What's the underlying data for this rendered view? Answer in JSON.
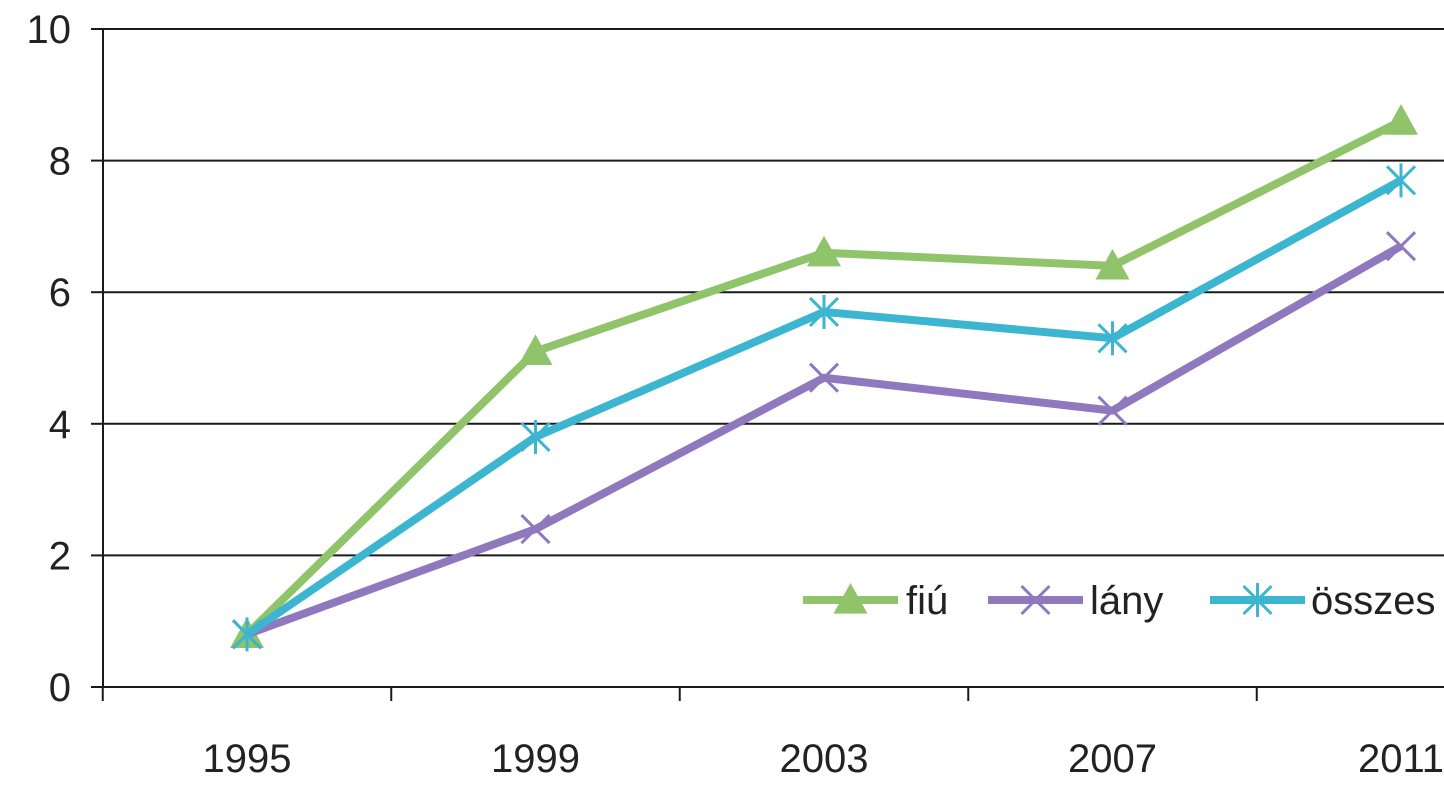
{
  "chart_data": {
    "type": "line",
    "categories": [
      "1995",
      "1999",
      "2003",
      "2007",
      "2011"
    ],
    "ylim": [
      0,
      10
    ],
    "yticks": [
      0,
      2,
      4,
      6,
      8,
      10
    ],
    "ytick_labels": [
      "0",
      "2",
      "4",
      "6",
      "8",
      "10"
    ],
    "grid": true,
    "legend_position": "bottom-right (inside plot)",
    "series": [
      {
        "name": "fiú",
        "color": "#8fc46a",
        "marker": "triangle",
        "values": [
          0.8,
          5.1,
          6.6,
          6.4,
          8.6
        ]
      },
      {
        "name": "lány",
        "color": "#8f78bd",
        "marker": "x",
        "values": [
          0.8,
          2.4,
          4.7,
          4.2,
          6.7
        ]
      },
      {
        "name": "összes",
        "color": "#3cb6d0",
        "marker": "asterisk",
        "values": [
          0.8,
          3.8,
          5.7,
          5.3,
          7.7
        ]
      }
    ]
  }
}
